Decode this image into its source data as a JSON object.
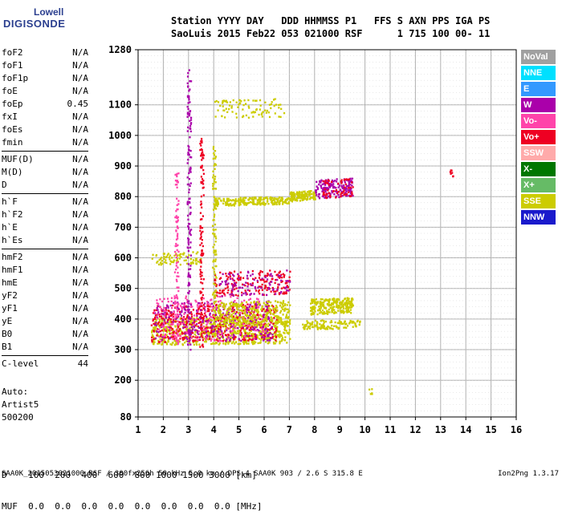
{
  "logo": {
    "line1": "Lowell",
    "line2": "DIGISONDE"
  },
  "header": {
    "line1": "Station YYYY DAY   DDD HHMMSS P1   FFS S AXN PPS IGA PS",
    "line2": "SaoLuis 2015 Feb22 053 021000 RSF      1 715 100 00- 11"
  },
  "params_group1": [
    {
      "name": "foF2",
      "value": "N/A"
    },
    {
      "name": "foF1",
      "value": "N/A"
    },
    {
      "name": "foF1p",
      "value": "N/A"
    },
    {
      "name": "foE",
      "value": "N/A"
    },
    {
      "name": "foEp",
      "value": "0.45"
    },
    {
      "name": "fxI",
      "value": "N/A"
    },
    {
      "name": "foEs",
      "value": "N/A"
    },
    {
      "name": "fmin",
      "value": "N/A"
    }
  ],
  "params_group2": [
    {
      "name": "MUF(D)",
      "value": "N/A"
    },
    {
      "name": "M(D)",
      "value": "N/A"
    },
    {
      "name": "D",
      "value": "N/A"
    }
  ],
  "params_group3": [
    {
      "name": "h`F",
      "value": "N/A"
    },
    {
      "name": "h`F2",
      "value": "N/A"
    },
    {
      "name": "h`E",
      "value": "N/A"
    },
    {
      "name": "h`Es",
      "value": "N/A"
    }
  ],
  "params_group4": [
    {
      "name": "hmF2",
      "value": "N/A"
    },
    {
      "name": "hmF1",
      "value": "N/A"
    },
    {
      "name": "hmE",
      "value": "N/A"
    },
    {
      "name": "yF2",
      "value": "N/A"
    },
    {
      "name": "yF1",
      "value": "N/A"
    },
    {
      "name": "yE",
      "value": "N/A"
    },
    {
      "name": "B0",
      "value": "N/A"
    },
    {
      "name": "B1",
      "value": "N/A"
    }
  ],
  "params_group5": [
    {
      "name": "C-level",
      "value": "44"
    }
  ],
  "auto": {
    "line1": "Auto:",
    "line2": "Artist5",
    "line3": "500200"
  },
  "distance_table": {
    "line1": "D    100  200  400  600  800 1000 1500 3000 [km]",
    "line2": "MUF  0.0  0.0  0.0  0.0  0.0  0.0  0.0  0.0 [MHz]"
  },
  "footer": {
    "left": "SAA0K_2015053021000.RSF / 300fx256h 50 kHz 5.0 km / DPS-4 SAA0K 903 / 2.6 S 315.8 E",
    "right": "Ion2Png 1.3.17"
  },
  "legend": [
    {
      "label": "NoVal",
      "color": "#a0a0a0"
    },
    {
      "label": "NNE",
      "color": "#00e0ff"
    },
    {
      "label": "E",
      "color": "#3399ff"
    },
    {
      "label": "W",
      "color": "#aa00aa"
    },
    {
      "label": "Vo-",
      "color": "#ff44aa"
    },
    {
      "label": "Vo+",
      "color": "#ee0022"
    },
    {
      "label": "SSW",
      "color": "#ffaaaa"
    },
    {
      "label": "X-",
      "color": "#007700"
    },
    {
      "label": "X+",
      "color": "#66bb66"
    },
    {
      "label": "SSE",
      "color": "#cccc00"
    },
    {
      "label": "NNW",
      "color": "#1a1acc"
    }
  ],
  "chart_data": {
    "type": "scatter",
    "xlim": [
      1,
      16
    ],
    "ylim": [
      80,
      1280
    ],
    "x_ticks": [
      1,
      2,
      3,
      4,
      5,
      6,
      7,
      8,
      9,
      10,
      11,
      12,
      13,
      14,
      15,
      16
    ],
    "y_ticks": [
      80,
      200,
      300,
      400,
      500,
      600,
      700,
      800,
      900,
      1000,
      1100,
      1280
    ],
    "grid": true,
    "legend_position": "right",
    "clusters": [
      {
        "name": "F-low",
        "color": "#cccc00",
        "x": [
          1.5,
          7.0
        ],
        "y_start": 320,
        "y_end": 410,
        "count": 700
      },
      {
        "name": "F-low-vo",
        "color": "#ee0022",
        "x": [
          1.5,
          6.5
        ],
        "y_start": 330,
        "y_end": 450,
        "count": 450
      },
      {
        "name": "F-low-w",
        "color": "#aa00aa",
        "x": [
          1.6,
          6.3
        ],
        "y_start": 330,
        "y_end": 460,
        "count": 280
      },
      {
        "name": "F-low-vom",
        "color": "#ff44aa",
        "x": [
          1.6,
          6.0
        ],
        "y_start": 330,
        "y_end": 480,
        "count": 200
      },
      {
        "name": "F-mid",
        "color": "#cccc00",
        "x": [
          4.0,
          7.0
        ],
        "y_start": 380,
        "y_end": 460,
        "count": 300
      },
      {
        "name": "F-520",
        "color": "#ee0022",
        "x": [
          4.0,
          7.0
        ],
        "y_start": 480,
        "y_end": 560,
        "count": 180
      },
      {
        "name": "F-520-w",
        "color": "#aa00aa",
        "x": [
          4.2,
          7.0
        ],
        "y_start": 480,
        "y_end": 560,
        "count": 90
      },
      {
        "name": "F-520-y",
        "color": "#cccc00",
        "x": [
          7.8,
          9.5
        ],
        "y_start": 420,
        "y_end": 470,
        "count": 260
      },
      {
        "name": "F-780",
        "color": "#cccc00",
        "x": [
          4.0,
          7.0
        ],
        "y_start": 775,
        "y_end": 800,
        "count": 220
      },
      {
        "name": "F-800-r",
        "color": "#cccc00",
        "x": [
          7.0,
          8.0
        ],
        "y_start": 790,
        "y_end": 820,
        "count": 140
      },
      {
        "name": "F-830",
        "color": "#aa00aa",
        "x": [
          8.0,
          9.5
        ],
        "y_start": 800,
        "y_end": 860,
        "count": 160
      },
      {
        "name": "F-830-r",
        "color": "#ee0022",
        "x": [
          8.3,
          9.5
        ],
        "y_start": 800,
        "y_end": 860,
        "count": 60
      },
      {
        "name": "F-1080",
        "color": "#cccc00",
        "x": [
          4.0,
          6.8
        ],
        "y_start": 1060,
        "y_end": 1120,
        "count": 90
      },
      {
        "name": "F-600",
        "color": "#cccc00",
        "x": [
          1.5,
          3.5
        ],
        "y_start": 580,
        "y_end": 620,
        "count": 80
      },
      {
        "name": "F-390",
        "color": "#cccc00",
        "x": [
          7.5,
          9.8
        ],
        "y_start": 370,
        "y_end": 400,
        "count": 120
      }
    ],
    "columns": [
      {
        "x": 3.0,
        "y_start": 300,
        "y_end": 1220,
        "color": "#aa00aa"
      },
      {
        "x": 3.5,
        "y_start": 300,
        "y_end": 1000,
        "color": "#ee0022"
      },
      {
        "x": 4.0,
        "y_start": 350,
        "y_end": 980,
        "color": "#cccc00"
      },
      {
        "x": 2.5,
        "y_start": 320,
        "y_end": 880,
        "color": "#ff44aa"
      },
      {
        "x": 13.4,
        "y_start": 860,
        "y_end": 900,
        "color": "#ee0022"
      },
      {
        "x": 10.2,
        "y_start": 150,
        "y_end": 180,
        "color": "#cccc00"
      }
    ]
  }
}
